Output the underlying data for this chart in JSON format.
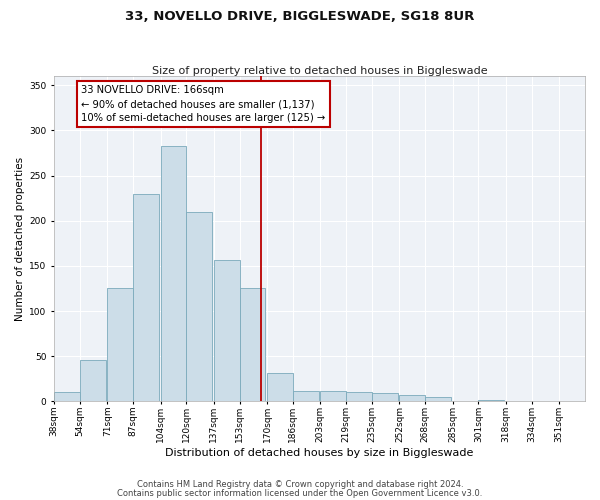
{
  "title": "33, NOVELLO DRIVE, BIGGLESWADE, SG18 8UR",
  "subtitle": "Size of property relative to detached houses in Biggleswade",
  "xlabel": "Distribution of detached houses by size in Biggleswade",
  "ylabel": "Number of detached properties",
  "bar_color": "#ccdde8",
  "bar_edge_color": "#7aaabb",
  "bar_edge_width": 0.6,
  "vline_x": 166,
  "vline_color": "#bb0000",
  "annotation_line1": "33 NOVELLO DRIVE: 166sqm",
  "annotation_line2": "← 90% of detached houses are smaller (1,137)",
  "annotation_line3": "10% of semi-detached houses are larger (125) →",
  "annotation_box_color": "#bb0000",
  "bins": [
    38,
    54,
    71,
    87,
    104,
    120,
    137,
    153,
    170,
    186,
    203,
    219,
    235,
    252,
    268,
    285,
    301,
    318,
    334,
    351,
    367
  ],
  "counts": [
    10,
    46,
    126,
    230,
    283,
    210,
    157,
    126,
    32,
    11,
    11,
    10,
    9,
    7,
    5,
    0,
    2,
    0,
    0,
    0
  ],
  "ylim": [
    0,
    360
  ],
  "yticks": [
    0,
    50,
    100,
    150,
    200,
    250,
    300,
    350
  ],
  "background_color": "#eef2f7",
  "grid_color": "#ffffff",
  "title_fontsize": 9.5,
  "subtitle_fontsize": 8,
  "ylabel_fontsize": 7.5,
  "xlabel_fontsize": 8,
  "tick_fontsize": 6.5,
  "footer1": "Contains HM Land Registry data © Crown copyright and database right 2024.",
  "footer2": "Contains public sector information licensed under the Open Government Licence v3.0.",
  "footer_fontsize": 6
}
